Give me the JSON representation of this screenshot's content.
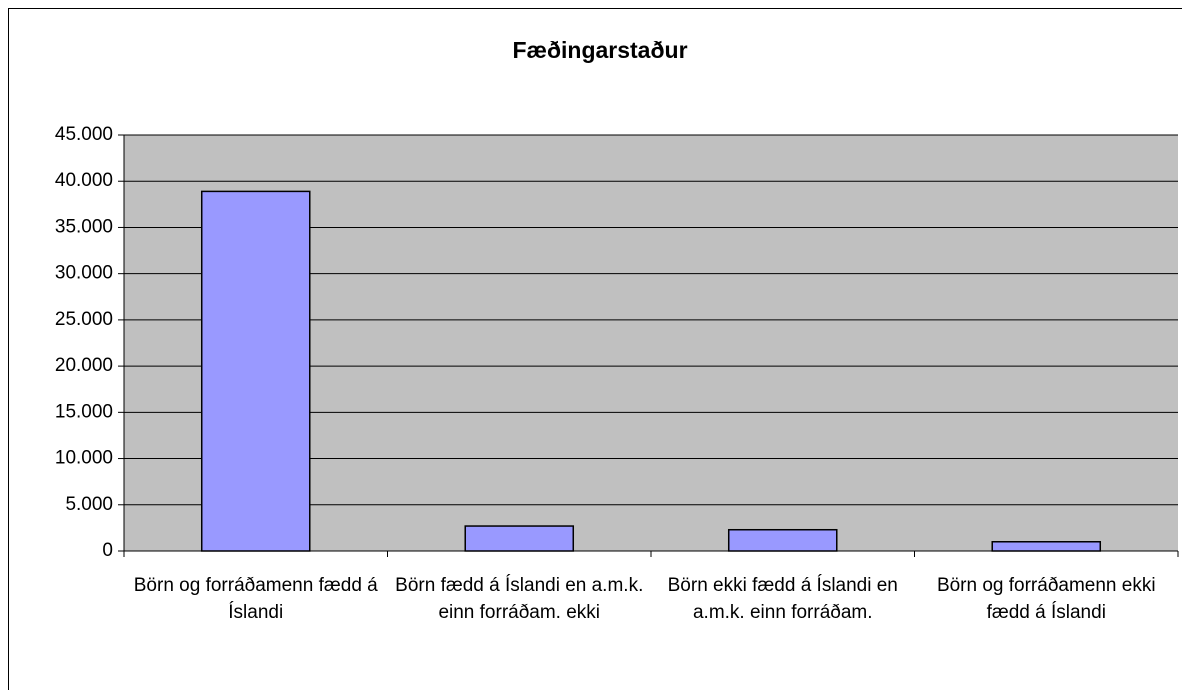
{
  "chart_data": {
    "type": "bar",
    "title": "Fæðingarstaður",
    "categories": [
      "Börn og forráðamenn fædd á Íslandi",
      "Börn fædd á Íslandi en a.m.k. einn forráðam. ekki",
      "Börn ekki fædd á Íslandi en a.m.k. einn forráðam.",
      "Börn og forráðamenn ekki fædd á Íslandi"
    ],
    "values": [
      38900,
      2700,
      2300,
      1000
    ],
    "color": "#9999ff",
    "ylim": [
      0,
      45000
    ],
    "yticks": [
      0,
      {
        "value": 5000,
        "label": "5.000"
      },
      {
        "value": 10000,
        "label": "10.000"
      },
      {
        "value": 15000,
        "label": "15.000"
      },
      {
        "value": 20000,
        "label": "20.000"
      },
      {
        "value": 25000,
        "label": "25.000"
      },
      {
        "value": 30000,
        "label": "30.000"
      },
      {
        "value": 35000,
        "label": "35.000"
      },
      {
        "value": 40000,
        "label": "40.000"
      },
      {
        "value": 45000,
        "label": "45.000"
      }
    ],
    "grid": true
  }
}
